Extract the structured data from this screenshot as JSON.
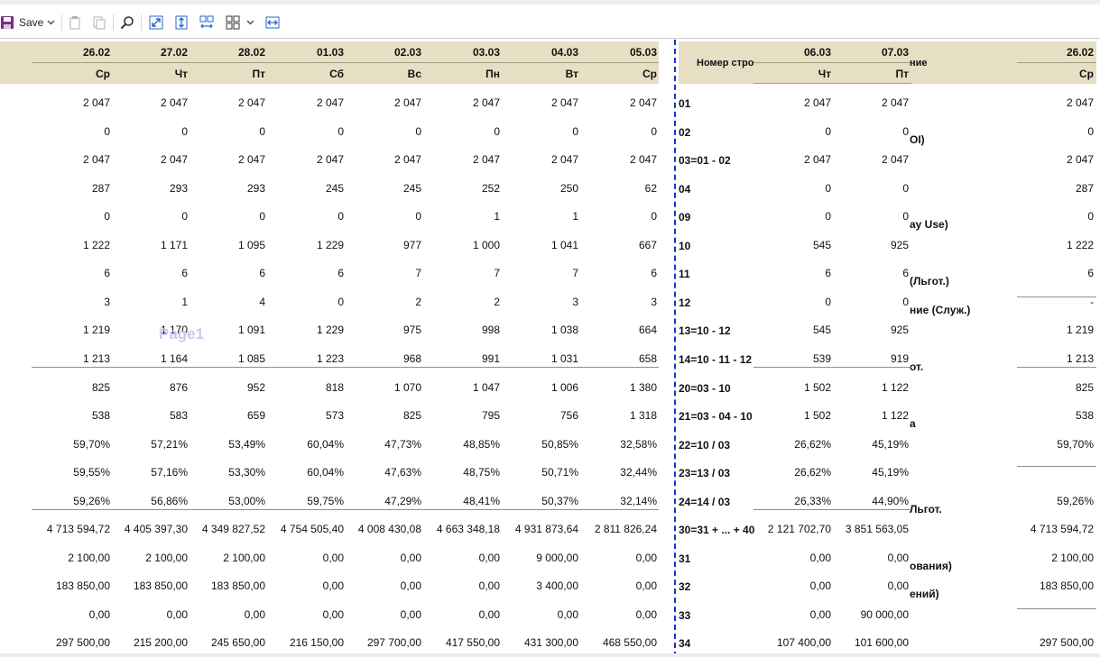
{
  "toolbar": {
    "save_label": "Save",
    "icons": [
      "save-icon",
      "dropdown-chevron-icon",
      "copy-icon",
      "paste-icon",
      "search-icon",
      "expand-icon",
      "fit-height-icon",
      "expand-columns-icon",
      "grid-icon",
      "dropdown-chevron-icon",
      "fit-width-icon"
    ]
  },
  "header": {
    "left_dates": [
      "26.02",
      "27.02",
      "28.02",
      "01.03",
      "02.03",
      "03.03",
      "04.03",
      "05.03"
    ],
    "left_days": [
      "Ср",
      "Чт",
      "Пт",
      "Сб",
      "Вс",
      "Пн",
      "Вт",
      "Ср"
    ],
    "row_number_header": "Номер стро",
    "right_dates": [
      "06.03",
      "07.03"
    ],
    "right_days": [
      "Чт",
      "Пт"
    ],
    "name_header_fragment": "ние",
    "far_right_date": "26.02",
    "far_right_day": "Ср"
  },
  "watermark": "Page1",
  "rows": [
    {
      "left": [
        "2 047",
        "2 047",
        "2 047",
        "2 047",
        "2 047",
        "2 047",
        "2 047",
        "2 047"
      ],
      "code": "01",
      "right": [
        "2 047",
        "2 047"
      ],
      "frag": "",
      "far": "2 047"
    },
    {
      "left": [
        "0",
        "0",
        "0",
        "0",
        "0",
        "0",
        "0",
        "0"
      ],
      "code": "02",
      "right": [
        "0",
        "0"
      ],
      "frag": "OI)",
      "far": "0"
    },
    {
      "left": [
        "2 047",
        "2 047",
        "2 047",
        "2 047",
        "2 047",
        "2 047",
        "2 047",
        "2 047"
      ],
      "code": "03=01 - 02",
      "right": [
        "2 047",
        "2 047"
      ],
      "frag": "",
      "far": "2 047"
    },
    {
      "left": [
        "287",
        "293",
        "293",
        "245",
        "245",
        "252",
        "250",
        "62"
      ],
      "code": "04",
      "right": [
        "0",
        "0"
      ],
      "frag": "",
      "far": "287"
    },
    {
      "left": [
        "0",
        "0",
        "0",
        "0",
        "0",
        "1",
        "1",
        "0"
      ],
      "code": "09",
      "right": [
        "0",
        "0"
      ],
      "frag": "ay Use)",
      "far": "0"
    },
    {
      "left": [
        "1 222",
        "1 171",
        "1 095",
        "1 229",
        "977",
        "1 000",
        "1 041",
        "667"
      ],
      "code": "10",
      "right": [
        "545",
        "925"
      ],
      "frag": "",
      "far": "1 222"
    },
    {
      "left": [
        "6",
        "6",
        "6",
        "6",
        "7",
        "7",
        "7",
        "6"
      ],
      "code": "11",
      "right": [
        "6",
        "6"
      ],
      "frag": "(Льгот.)",
      "far": "6"
    },
    {
      "left": [
        "3",
        "1",
        "4",
        "0",
        "2",
        "2",
        "3",
        "3"
      ],
      "code": "12",
      "right": [
        "0",
        "0"
      ],
      "frag": "ние (Служ.)",
      "far": "-"
    },
    {
      "left": [
        "1 219",
        "1 170",
        "1 091",
        "1 229",
        "975",
        "998",
        "1 038",
        "664"
      ],
      "code": "13=10 - 12",
      "right": [
        "545",
        "925"
      ],
      "frag": "",
      "far": "1 219"
    },
    {
      "left": [
        "1 213",
        "1 164",
        "1 085",
        "1 223",
        "968",
        "991",
        "1 031",
        "658"
      ],
      "code": "14=10 - 11 - 12",
      "right": [
        "539",
        "919"
      ],
      "frag": "от.",
      "far": "1 213"
    },
    {
      "left": [
        "825",
        "876",
        "952",
        "818",
        "1 070",
        "1 047",
        "1 006",
        "1 380"
      ],
      "code": "20=03 - 10",
      "right": [
        "1 502",
        "1 122"
      ],
      "frag": "",
      "far": "825"
    },
    {
      "left": [
        "538",
        "583",
        "659",
        "573",
        "825",
        "795",
        "756",
        "1 318"
      ],
      "code": "21=03 - 04 - 10",
      "right": [
        "1 502",
        "1 122"
      ],
      "frag": "а",
      "far": "538"
    },
    {
      "left": [
        "59,70%",
        "57,21%",
        "53,49%",
        "60,04%",
        "47,73%",
        "48,85%",
        "50,85%",
        "32,58%"
      ],
      "code": "22=10 / 03",
      "right": [
        "26,62%",
        "45,19%"
      ],
      "frag": "",
      "far": "59,70%"
    },
    {
      "left": [
        "59,55%",
        "57,16%",
        "53,30%",
        "60,04%",
        "47,63%",
        "48,75%",
        "50,71%",
        "32,44%"
      ],
      "code": "23=13 / 03",
      "right": [
        "26,62%",
        "45,19%"
      ],
      "frag": "",
      "far": ""
    },
    {
      "left": [
        "59,26%",
        "56,86%",
        "53,00%",
        "59,75%",
        "47,29%",
        "48,41%",
        "50,37%",
        "32,14%"
      ],
      "code": "24=14 / 03",
      "right": [
        "26,33%",
        "44,90%"
      ],
      "frag": "Льгот.",
      "far": "59,26%"
    },
    {
      "left": [
        "4 713 594,72",
        "4 405 397,30",
        "4 349 827,52",
        "4 754 505,40",
        "4 008 430,08",
        "4 663 348,18",
        "4 931 873,64",
        "2 811 826,24"
      ],
      "code": "30=31 + ... + 40",
      "right": [
        "2 121 702,70",
        "3 851 563,05"
      ],
      "frag": "",
      "far": "4 713 594,72"
    },
    {
      "left": [
        "2 100,00",
        "2 100,00",
        "2 100,00",
        "0,00",
        "0,00",
        "0,00",
        "9 000,00",
        "0,00"
      ],
      "code": "31",
      "right": [
        "0,00",
        "0,00"
      ],
      "frag": "ования)",
      "far": "2 100,00"
    },
    {
      "left": [
        "183 850,00",
        "183 850,00",
        "183 850,00",
        "0,00",
        "0,00",
        "0,00",
        "3 400,00",
        "0,00"
      ],
      "code": "32",
      "right": [
        "0,00",
        "0,00"
      ],
      "frag": "ений)",
      "far": "183 850,00"
    },
    {
      "left": [
        "0,00",
        "0,00",
        "0,00",
        "0,00",
        "0,00",
        "0,00",
        "0,00",
        "0,00"
      ],
      "code": "33",
      "right": [
        "0,00",
        "90 000,00"
      ],
      "frag": "",
      "far": ""
    },
    {
      "left": [
        "297 500,00",
        "215 200,00",
        "245 650,00",
        "216 150,00",
        "297 700,00",
        "417 550,00",
        "431 300,00",
        "468 550,00"
      ],
      "code": "34",
      "right": [
        "107 400,00",
        "101 600,00"
      ],
      "frag": "",
      "far": "297 500,00"
    }
  ]
}
